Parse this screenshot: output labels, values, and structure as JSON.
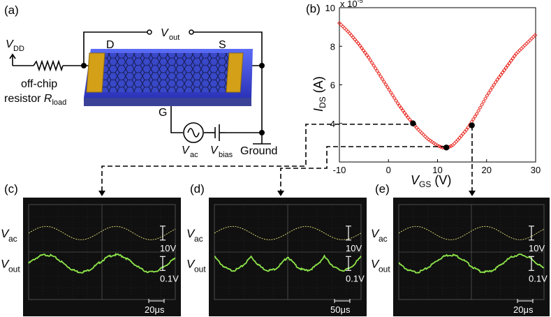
{
  "panels": {
    "a": "(a)",
    "b": "(b)",
    "c": "(c)",
    "d": "(d)",
    "e": "(e)"
  },
  "schematic": {
    "vdd": "V",
    "vdd_sub": "DD",
    "vout": "V",
    "vout_sub": "out",
    "drain": "D",
    "source": "S",
    "gate": "G",
    "resistor_line1": "off-chip",
    "resistor_line2": "resistor ",
    "resistor_sym": "R",
    "resistor_sub": "load",
    "vac": "V",
    "vac_sub": "ac",
    "vbias": "V",
    "vbias_sub": "bias",
    "ground": "Ground"
  },
  "chart_data": {
    "type": "scatter",
    "title": "",
    "xlabel": "V",
    "xlabel_sub": "GS",
    "xlabel_unit": " (V)",
    "ylabel": "I",
    "ylabel_sub": "DS",
    "ylabel_unit": " (A)",
    "scale_label": "x 10",
    "scale_exp": "-5",
    "xlim": [
      -10,
      30
    ],
    "ylim": [
      2,
      10
    ],
    "xticks": [
      "-10",
      "0",
      "10",
      "20",
      "30"
    ],
    "yticks": [
      "4",
      "6",
      "8",
      "10"
    ],
    "grid": false,
    "series_color": "#e8231c",
    "x": [
      -10,
      -8,
      -6,
      -4,
      -2,
      0,
      2,
      4,
      5,
      6,
      8,
      10,
      11,
      12,
      13,
      14,
      16,
      18,
      20,
      22,
      24,
      26,
      28,
      30
    ],
    "y": [
      9.2,
      8.7,
      8.1,
      7.4,
      6.6,
      5.8,
      5.0,
      4.3,
      4.0,
      3.7,
      3.2,
      2.85,
      2.75,
      2.75,
      2.85,
      3.1,
      3.7,
      4.5,
      5.4,
      6.2,
      6.9,
      7.6,
      8.1,
      8.6
    ],
    "markers": [
      {
        "x": 5,
        "y": 4.0
      },
      {
        "x": 11.8,
        "y": 2.75
      },
      {
        "x": 17,
        "y": 3.9
      }
    ]
  },
  "scopes": [
    {
      "vac": "V",
      "vac_sub": "ac",
      "vout": "V",
      "vout_sub": "out",
      "scale1": "10V",
      "scale2": "0.1V",
      "time": "20μs",
      "mode": "sine"
    },
    {
      "vac": "V",
      "vac_sub": "ac",
      "vout": "V",
      "vout_sub": "out",
      "scale1": "10V",
      "scale2": "0.1V",
      "time": "50μs",
      "mode": "double"
    },
    {
      "vac": "V",
      "vac_sub": "ac",
      "vout": "V",
      "vout_sub": "out",
      "scale1": "10V",
      "scale2": "0.1V",
      "time": "20μs",
      "mode": "invert"
    }
  ],
  "colors": {
    "device_blue": "#3e4fe0",
    "electrode": "#d4a017",
    "trace_yellow": "#e5e27a",
    "trace_green": "#8ee64a",
    "scope_bg": "#101010"
  }
}
